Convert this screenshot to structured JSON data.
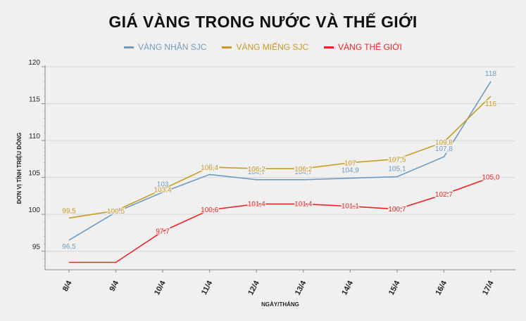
{
  "chart_data": {
    "type": "line",
    "title": "GIÁ VÀNG TRONG NƯỚC VÀ THẾ GIỚI",
    "xlabel": "NGÀY/THÁNG",
    "ylabel": "ĐƠN VỊ TÍNH TRIỆU ĐỒNG",
    "categories": [
      "8/4",
      "9/4",
      "10/4",
      "11/4",
      "12/4",
      "13/4",
      "14/4",
      "15/4",
      "16/4",
      "17/4"
    ],
    "ylim": [
      92.5,
      120
    ],
    "yticks": [
      95,
      100,
      105,
      110,
      115,
      120
    ],
    "grid": "horizontal",
    "legend_position": "top-center",
    "series": [
      {
        "name": "VÀNG NHẪN SJC",
        "color": "#6f9bbf",
        "values": [
          96.5,
          100.3,
          103.0,
          105.4,
          104.7,
          104.7,
          104.9,
          105.1,
          107.8,
          118
        ],
        "labels": [
          "96,5",
          "",
          "103",
          "105,4",
          "104,7",
          "104,7",
          "104,9",
          "105,1",
          "107,8",
          "118"
        ]
      },
      {
        "name": "VÀNG MIẾNG SJC",
        "color": "#c89a1e",
        "values": [
          99.5,
          100.5,
          103.4,
          106.4,
          106.2,
          106.2,
          107,
          107.5,
          109.8,
          116
        ],
        "labels": [
          "99,5",
          "100,5",
          "103,4",
          "106,4",
          "106,2",
          "106,2",
          "107",
          "107,5",
          "109,8",
          "116"
        ]
      },
      {
        "name": "VÀNG THẾ GIỚI",
        "color": "#ee2222",
        "values": [
          93.5,
          93.5,
          97.7,
          100.6,
          101.4,
          101.4,
          101.1,
          100.7,
          102.7,
          105.0
        ],
        "labels": [
          "",
          "",
          "97,7",
          "100,6",
          "101,4",
          "101,4",
          "101,1",
          "100,7",
          "102,7",
          "105,0"
        ]
      }
    ]
  }
}
